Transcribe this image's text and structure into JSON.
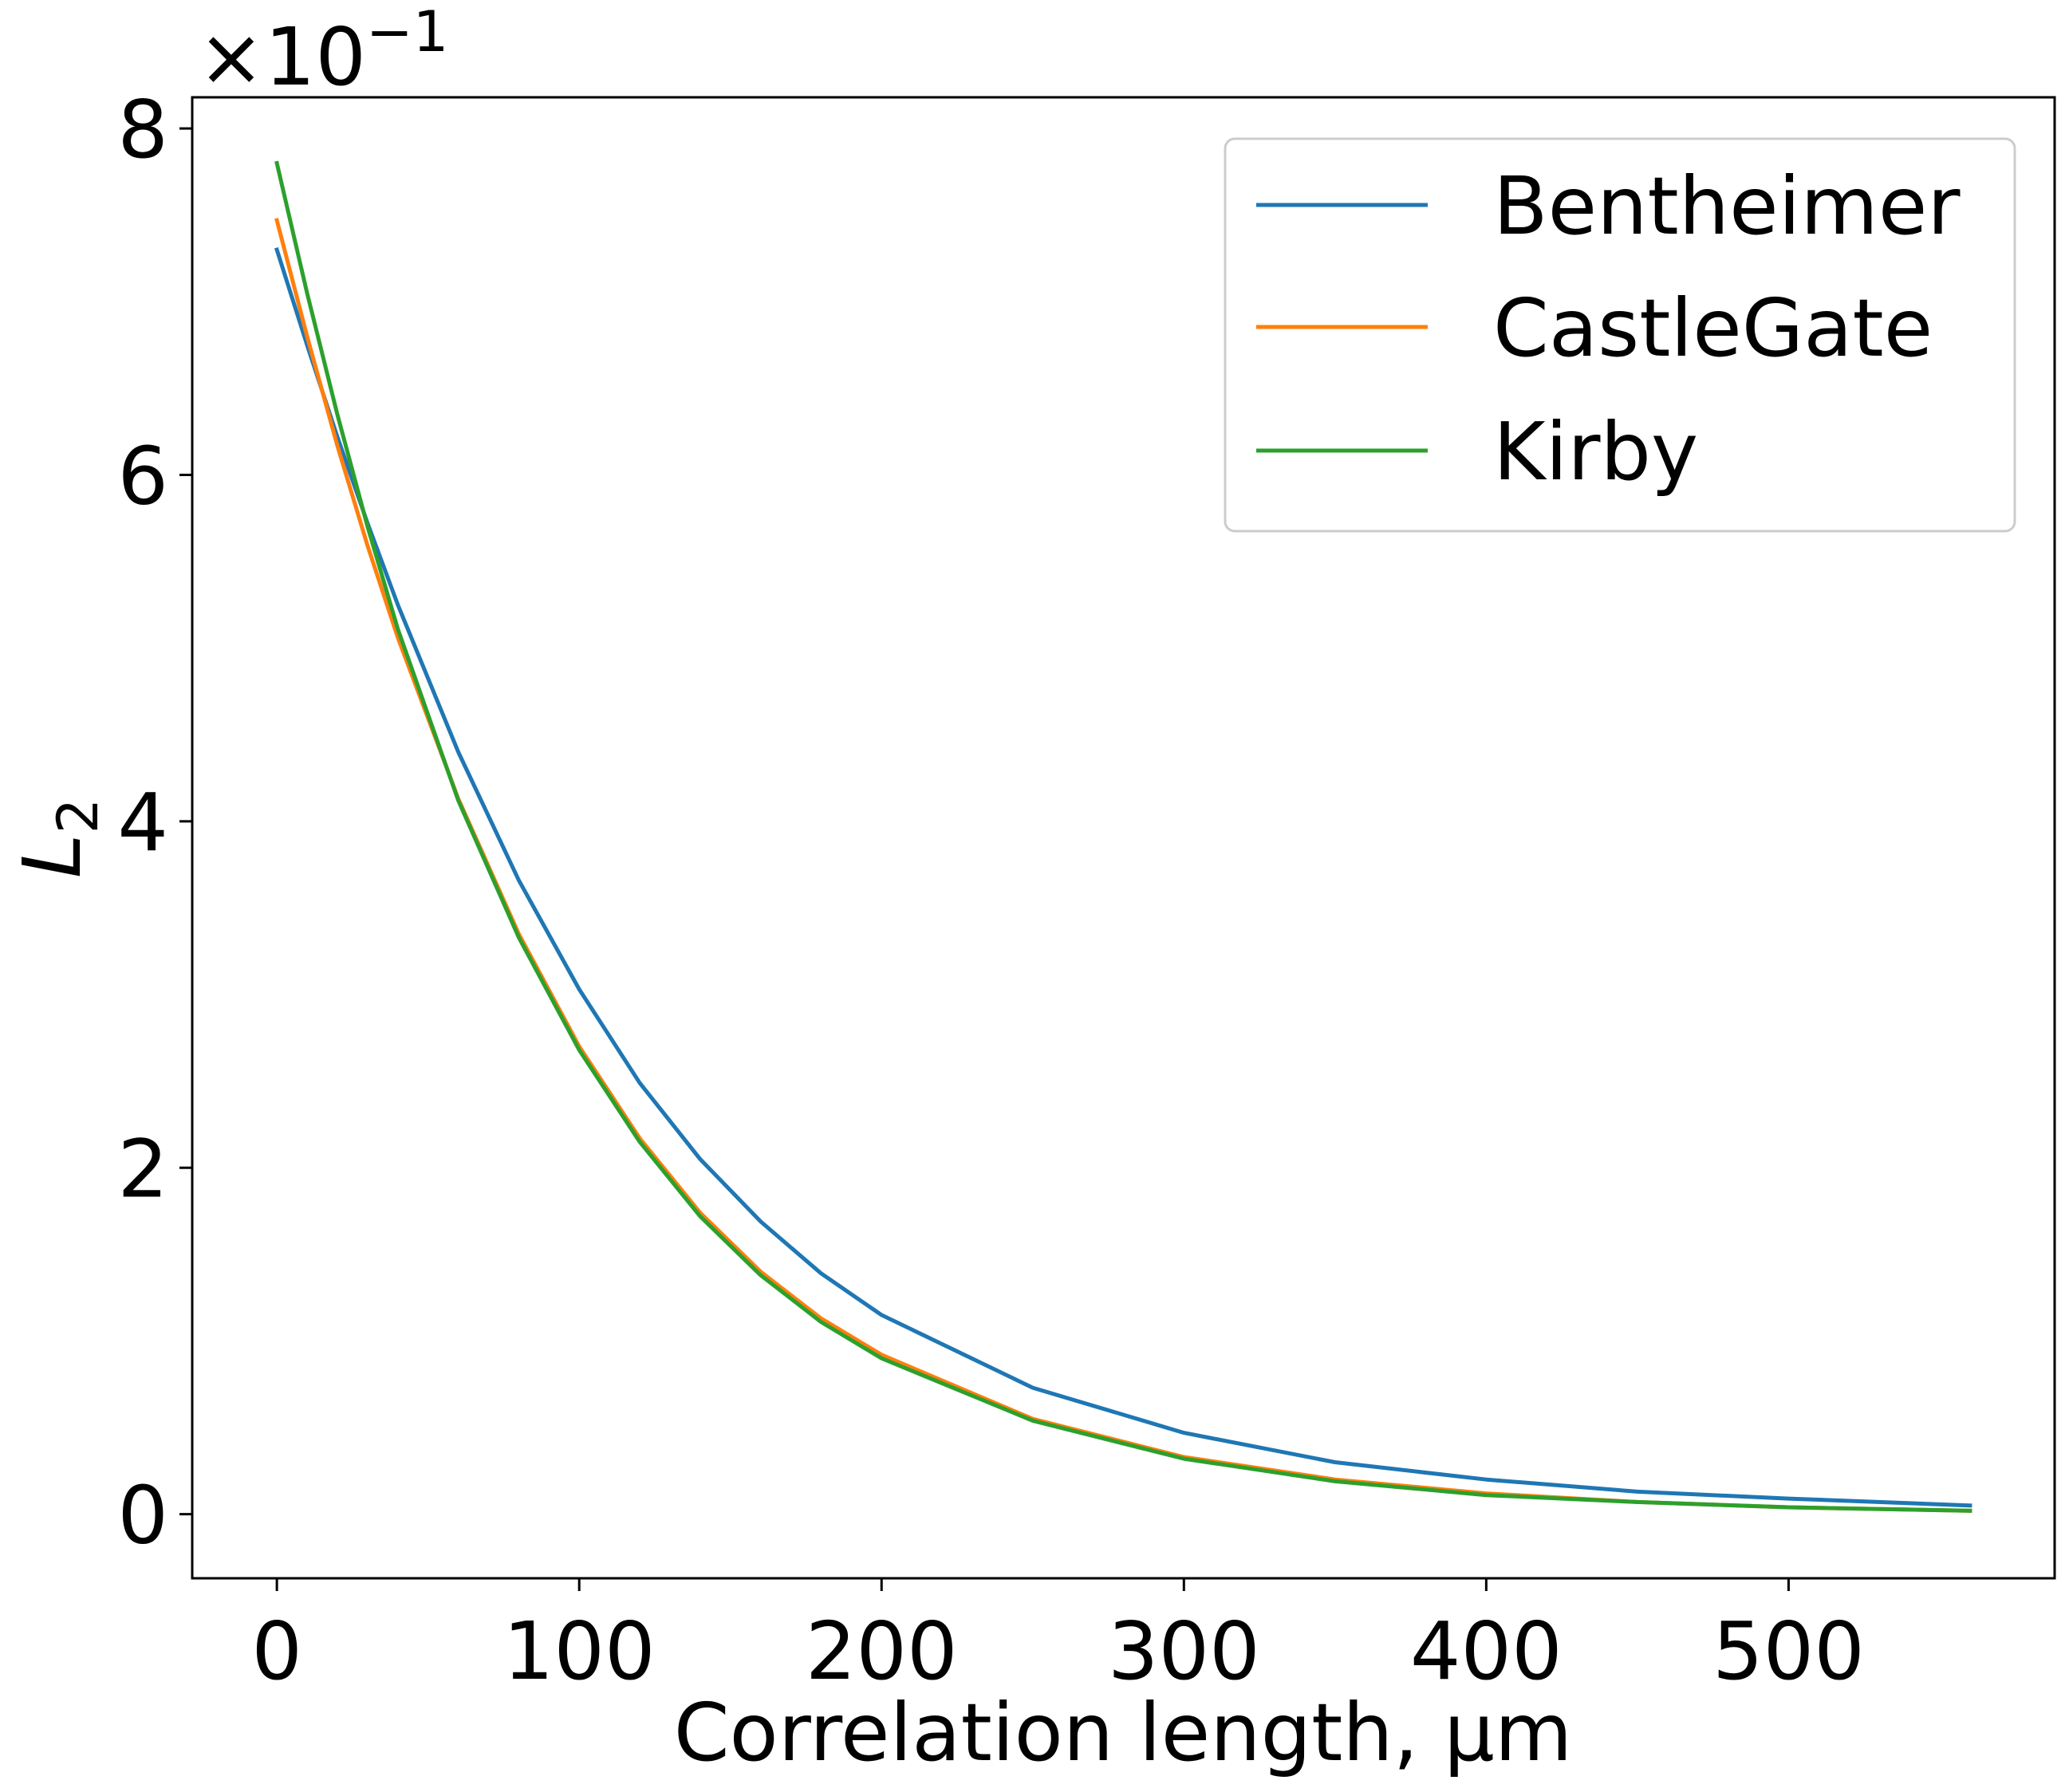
{
  "chart_data": {
    "type": "line",
    "xlabel": "Correlation length, µm",
    "ylabel": "L",
    "ylabel_subscript": "2",
    "offset_text": "×10",
    "offset_exponent": "−1",
    "xlim": [
      -28,
      588
    ],
    "ylim": [
      -0.37,
      8.18
    ],
    "xticks": [
      0,
      100,
      200,
      300,
      400,
      500
    ],
    "xtick_labels": [
      "0",
      "100",
      "200",
      "300",
      "400",
      "500"
    ],
    "yticks": [
      0,
      2,
      4,
      6,
      8
    ],
    "ytick_labels": [
      "0",
      "2",
      "4",
      "6",
      "8"
    ],
    "grid": false,
    "legend_position": "upper right",
    "x": [
      0,
      10,
      20,
      30,
      40,
      60,
      80,
      100,
      120,
      140,
      160,
      180,
      200,
      250,
      300,
      350,
      400,
      450,
      500,
      560
    ],
    "series": [
      {
        "name": "Bentheimer",
        "color": "#1f77b4",
        "values": [
          7.3,
          6.75,
          6.22,
          5.72,
          5.25,
          4.4,
          3.66,
          3.03,
          2.49,
          2.05,
          1.69,
          1.39,
          1.15,
          0.73,
          0.47,
          0.3,
          0.2,
          0.13,
          0.09,
          0.05
        ]
      },
      {
        "name": "CastleGate",
        "color": "#ff7f0e",
        "values": [
          7.47,
          6.8,
          6.17,
          5.59,
          5.06,
          4.13,
          3.35,
          2.7,
          2.17,
          1.74,
          1.4,
          1.13,
          0.92,
          0.55,
          0.33,
          0.2,
          0.12,
          0.07,
          0.04,
          0.02
        ]
      },
      {
        "name": "Kirby",
        "color": "#2ca02c",
        "values": [
          7.8,
          7.05,
          6.35,
          5.7,
          5.11,
          4.12,
          3.33,
          2.68,
          2.15,
          1.72,
          1.38,
          1.11,
          0.9,
          0.54,
          0.32,
          0.19,
          0.11,
          0.07,
          0.04,
          0.02
        ]
      }
    ]
  }
}
